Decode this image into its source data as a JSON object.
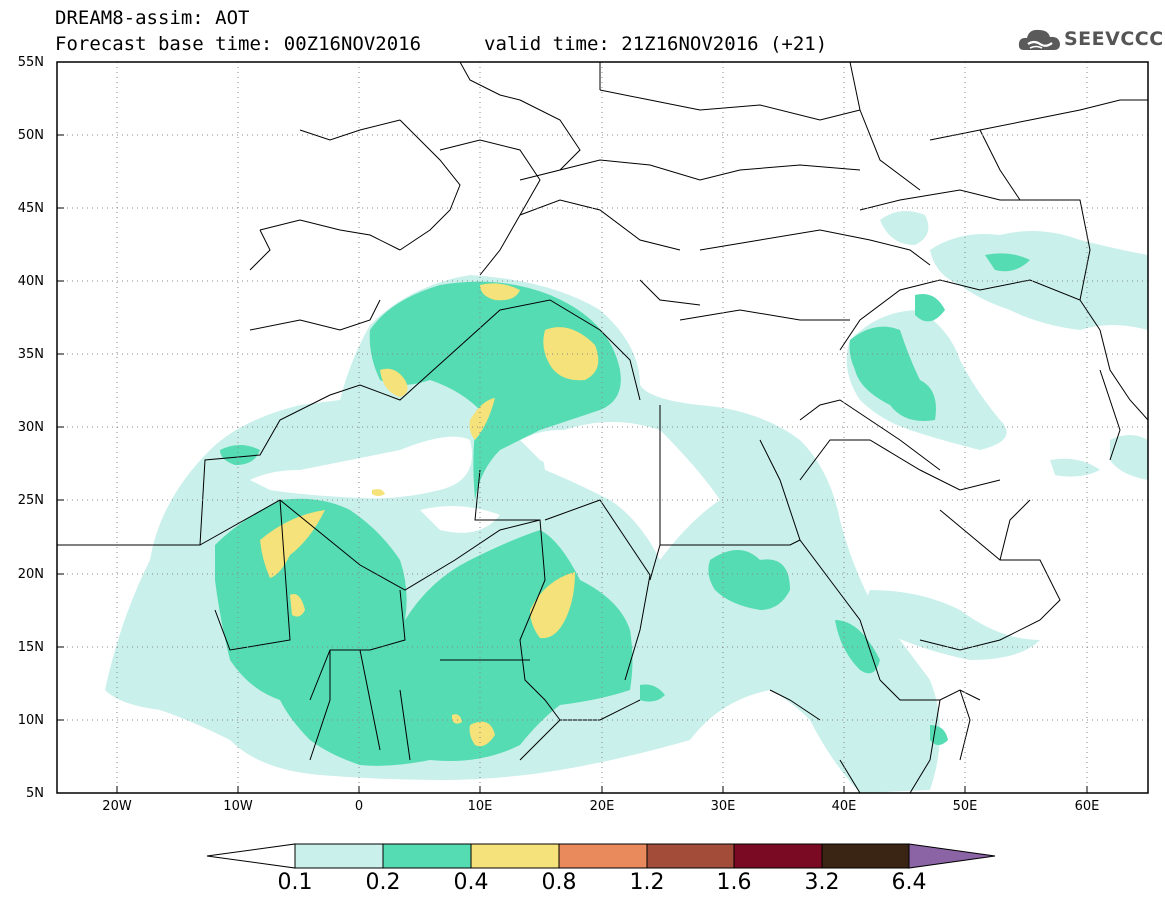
{
  "header": {
    "title_line1": "DREAM8-assim: AOT",
    "title_line2": "Forecast base time: 00Z16NOV2016",
    "title_line3": "valid time: 21Z16NOV2016 (+21)",
    "logo_text": "SEEVCCC"
  },
  "axes": {
    "lat_labels": [
      "55N",
      "50N",
      "45N",
      "40N",
      "35N",
      "30N",
      "25N",
      "20N",
      "15N",
      "10N",
      "5N"
    ],
    "lon_labels": [
      "20W",
      "10W",
      "0",
      "10E",
      "20E",
      "30E",
      "40E",
      "50E",
      "60E"
    ],
    "lon_range": [
      -25,
      65
    ],
    "lat_range": [
      5,
      55
    ],
    "grid": "dotted"
  },
  "colorbar": {
    "labels": [
      "0.1",
      "0.2",
      "0.4",
      "0.8",
      "1.2",
      "1.6",
      "3.2",
      "6.4"
    ],
    "colors": [
      "#ffffff",
      "#c9f0eb",
      "#56dcb2",
      "#f5e27a",
      "#e88a5c",
      "#a44c3a",
      "#7a0a24",
      "#3a2414",
      "#8a64a4"
    ]
  },
  "colors": {
    "level1": "#c9f0eb",
    "level2": "#56dcb2",
    "level3": "#f5e27a",
    "borders": "#000000"
  }
}
